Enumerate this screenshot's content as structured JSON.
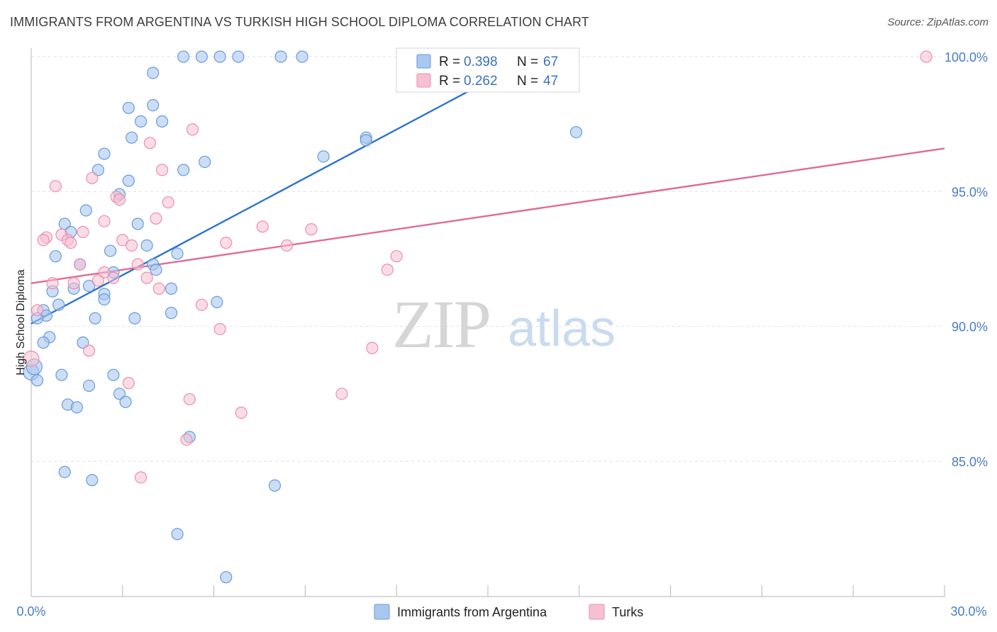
{
  "header": {
    "title": "IMMIGRANTS FROM ARGENTINA VS TURKISH HIGH SCHOOL DIPLOMA CORRELATION CHART",
    "source": "Source: ZipAtlas.com"
  },
  "watermark": {
    "zip": "ZIP",
    "atlas": "atlas"
  },
  "legend": {
    "r_label": "R =",
    "n_label": "N =",
    "rows": [
      {
        "r": "0.398",
        "n": "67",
        "color": "#a8c8f0"
      },
      {
        "r": "0.262",
        "n": "47",
        "color": "#f6b8cc"
      }
    ]
  },
  "colors": {
    "blue_fill": "#a8c8f0",
    "blue_stroke": "#6a9ad8",
    "blue_line": "#2c72d0",
    "pink_fill": "#f6c0d2",
    "pink_stroke": "#e890ae",
    "pink_line": "#e06a98",
    "grid": "#e2e2e2",
    "tick_text": "#4a7cc4"
  },
  "chart_data": {
    "type": "scatter",
    "title": "IMMIGRANTS FROM ARGENTINA VS TURKISH HIGH SCHOOL DIPLOMA CORRELATION CHART",
    "xlabel": "",
    "ylabel": "High School Diploma",
    "xlim": [
      0,
      30
    ],
    "ylim": [
      80.3,
      100.6
    ],
    "x_tick_labels": [
      "0.0%",
      "30.0%"
    ],
    "y_ticks": [
      85,
      90,
      95,
      100
    ],
    "y_tick_labels": [
      "85.0%",
      "90.0%",
      "95.0%",
      "100.0%"
    ],
    "grid": true,
    "legend_position": "top-center",
    "series": [
      {
        "name": "Immigrants from Argentina",
        "color": "#a8c8f0",
        "r": 0.398,
        "n": 67,
        "trend": {
          "x": [
            0.0,
            16.5
          ],
          "y": [
            90.1,
            100.0
          ]
        },
        "points": [
          {
            "x": 5.0,
            "y": 100.0
          },
          {
            "x": 5.6,
            "y": 100.0
          },
          {
            "x": 6.2,
            "y": 100.0
          },
          {
            "x": 6.8,
            "y": 100.0
          },
          {
            "x": 8.2,
            "y": 100.0
          },
          {
            "x": 8.9,
            "y": 100.0
          },
          {
            "x": 4.0,
            "y": 99.4
          },
          {
            "x": 3.2,
            "y": 98.1
          },
          {
            "x": 4.0,
            "y": 98.2
          },
          {
            "x": 3.6,
            "y": 97.6
          },
          {
            "x": 4.3,
            "y": 97.6
          },
          {
            "x": 3.3,
            "y": 97.0
          },
          {
            "x": 11.0,
            "y": 97.0
          },
          {
            "x": 17.9,
            "y": 97.2
          },
          {
            "x": 9.6,
            "y": 96.3
          },
          {
            "x": 11.0,
            "y": 96.9
          },
          {
            "x": 2.4,
            "y": 96.4
          },
          {
            "x": 5.7,
            "y": 96.1
          },
          {
            "x": 2.2,
            "y": 95.8
          },
          {
            "x": 5.0,
            "y": 95.8
          },
          {
            "x": 3.2,
            "y": 95.4
          },
          {
            "x": 2.9,
            "y": 94.9
          },
          {
            "x": 1.8,
            "y": 94.3
          },
          {
            "x": 1.1,
            "y": 93.8
          },
          {
            "x": 3.5,
            "y": 93.8
          },
          {
            "x": 1.3,
            "y": 93.5
          },
          {
            "x": 3.8,
            "y": 93.0
          },
          {
            "x": 2.6,
            "y": 92.8
          },
          {
            "x": 0.8,
            "y": 92.6
          },
          {
            "x": 4.8,
            "y": 92.7
          },
          {
            "x": 1.6,
            "y": 92.3
          },
          {
            "x": 4.0,
            "y": 92.3
          },
          {
            "x": 2.7,
            "y": 92.0
          },
          {
            "x": 4.1,
            "y": 92.1
          },
          {
            "x": 1.9,
            "y": 91.5
          },
          {
            "x": 1.4,
            "y": 91.4
          },
          {
            "x": 2.4,
            "y": 91.2
          },
          {
            "x": 0.7,
            "y": 91.3
          },
          {
            "x": 4.6,
            "y": 91.4
          },
          {
            "x": 2.4,
            "y": 91.0
          },
          {
            "x": 0.9,
            "y": 90.8
          },
          {
            "x": 6.1,
            "y": 90.9
          },
          {
            "x": 0.4,
            "y": 90.6
          },
          {
            "x": 0.5,
            "y": 90.4
          },
          {
            "x": 4.6,
            "y": 90.5
          },
          {
            "x": 0.2,
            "y": 90.3
          },
          {
            "x": 2.1,
            "y": 90.3
          },
          {
            "x": 3.4,
            "y": 90.3
          },
          {
            "x": 0.6,
            "y": 89.6
          },
          {
            "x": 0.4,
            "y": 89.4
          },
          {
            "x": 1.7,
            "y": 89.4
          },
          {
            "x": 0.0,
            "y": 88.3
          },
          {
            "x": 1.0,
            "y": 88.2
          },
          {
            "x": 2.7,
            "y": 88.2
          },
          {
            "x": 0.2,
            "y": 88.0
          },
          {
            "x": 1.9,
            "y": 87.8
          },
          {
            "x": 2.9,
            "y": 87.5
          },
          {
            "x": 3.1,
            "y": 87.2
          },
          {
            "x": 1.2,
            "y": 87.1
          },
          {
            "x": 1.5,
            "y": 87.0
          },
          {
            "x": 5.2,
            "y": 85.9
          },
          {
            "x": 1.1,
            "y": 84.6
          },
          {
            "x": 2.0,
            "y": 84.3
          },
          {
            "x": 8.0,
            "y": 84.1
          },
          {
            "x": 4.8,
            "y": 82.3
          },
          {
            "x": 6.4,
            "y": 80.7
          },
          {
            "x": 0.1,
            "y": 88.5
          }
        ]
      },
      {
        "name": "Turks",
        "color": "#f6b8cc",
        "r": 0.262,
        "n": 47,
        "trend": {
          "x": [
            0.0,
            30.0
          ],
          "y": [
            91.6,
            96.6
          ]
        },
        "points": [
          {
            "x": 12.6,
            "y": 100.0
          },
          {
            "x": 29.4,
            "y": 100.0
          },
          {
            "x": 5.3,
            "y": 97.3
          },
          {
            "x": 3.9,
            "y": 96.8
          },
          {
            "x": 4.3,
            "y": 95.8
          },
          {
            "x": 2.0,
            "y": 95.5
          },
          {
            "x": 0.8,
            "y": 95.2
          },
          {
            "x": 2.8,
            "y": 94.8
          },
          {
            "x": 2.9,
            "y": 94.7
          },
          {
            "x": 4.5,
            "y": 94.6
          },
          {
            "x": 2.4,
            "y": 93.9
          },
          {
            "x": 4.1,
            "y": 94.0
          },
          {
            "x": 7.6,
            "y": 93.7
          },
          {
            "x": 9.2,
            "y": 93.6
          },
          {
            "x": 1.7,
            "y": 93.5
          },
          {
            "x": 1.0,
            "y": 93.4
          },
          {
            "x": 0.5,
            "y": 93.3
          },
          {
            "x": 0.4,
            "y": 93.2
          },
          {
            "x": 1.2,
            "y": 93.2
          },
          {
            "x": 1.3,
            "y": 93.1
          },
          {
            "x": 3.0,
            "y": 93.2
          },
          {
            "x": 6.4,
            "y": 93.1
          },
          {
            "x": 8.4,
            "y": 93.0
          },
          {
            "x": 3.3,
            "y": 93.0
          },
          {
            "x": 12.0,
            "y": 92.6
          },
          {
            "x": 1.6,
            "y": 92.3
          },
          {
            "x": 3.5,
            "y": 92.3
          },
          {
            "x": 11.7,
            "y": 92.1
          },
          {
            "x": 2.4,
            "y": 92.0
          },
          {
            "x": 2.2,
            "y": 91.7
          },
          {
            "x": 3.8,
            "y": 91.8
          },
          {
            "x": 0.7,
            "y": 91.6
          },
          {
            "x": 1.4,
            "y": 91.6
          },
          {
            "x": 2.7,
            "y": 91.8
          },
          {
            "x": 4.2,
            "y": 91.4
          },
          {
            "x": 0.2,
            "y": 90.6
          },
          {
            "x": 5.6,
            "y": 90.8
          },
          {
            "x": 6.2,
            "y": 89.9
          },
          {
            "x": 11.2,
            "y": 89.2
          },
          {
            "x": 1.9,
            "y": 89.1
          },
          {
            "x": 3.2,
            "y": 87.9
          },
          {
            "x": 10.2,
            "y": 87.5
          },
          {
            "x": 5.2,
            "y": 87.3
          },
          {
            "x": 6.9,
            "y": 86.8
          },
          {
            "x": 5.1,
            "y": 85.8
          },
          {
            "x": 3.6,
            "y": 84.4
          },
          {
            "x": 0.0,
            "y": 88.8
          }
        ]
      }
    ]
  }
}
